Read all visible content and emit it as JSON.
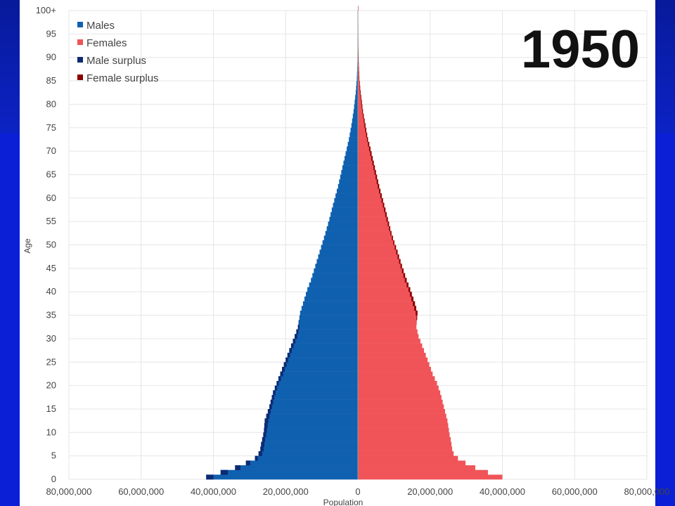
{
  "slide": {
    "background": "#0a1fd6",
    "panel_background": "#ffffff"
  },
  "chart_data": {
    "type": "bar",
    "orientation": "horizontal-population-pyramid",
    "year_label": "1950",
    "xlabel": "Population",
    "ylabel": "Age",
    "xlim": [
      -80000000,
      80000000
    ],
    "x_ticks": [
      -80000000,
      -60000000,
      -40000000,
      -20000000,
      0,
      20000000,
      40000000,
      60000000,
      80000000
    ],
    "x_tick_labels": [
      "80,000,000",
      "60,000,000",
      "40,000,000",
      "20,000,000",
      "0",
      "20,000,000",
      "40,000,000",
      "60,000,000",
      "80,000,000"
    ],
    "y_ticks": [
      0,
      5,
      10,
      15,
      20,
      25,
      30,
      35,
      40,
      45,
      50,
      55,
      60,
      65,
      70,
      75,
      80,
      85,
      90,
      95,
      100
    ],
    "y_tick_labels": [
      "0",
      "5",
      "10",
      "15",
      "20",
      "25",
      "30",
      "35",
      "40",
      "45",
      "50",
      "55",
      "60",
      "65",
      "70",
      "75",
      "80",
      "85",
      "90",
      "95",
      "100+"
    ],
    "grid": true,
    "legend_position": "top-left",
    "legend": [
      {
        "label": "Males",
        "color": "#1060b0"
      },
      {
        "label": "Females",
        "color": "#f05458"
      },
      {
        "label": "Male surplus",
        "color": "#0d2a72"
      },
      {
        "label": "Female surplus",
        "color": "#8b0000"
      }
    ],
    "series": [
      {
        "name": "Males",
        "color": "#1060b0",
        "ages": [
          0,
          1,
          2,
          3,
          4,
          5,
          6,
          7,
          8,
          9,
          10,
          12,
          15,
          18,
          20,
          22,
          25,
          28,
          30,
          32,
          35,
          37,
          40,
          42,
          45,
          48,
          50,
          52,
          55,
          58,
          60,
          62,
          65,
          68,
          70,
          72,
          75,
          78,
          80,
          82,
          85,
          88,
          90,
          92,
          95,
          98,
          100
        ],
        "values": [
          42000000,
          38000000,
          34000000,
          31000000,
          28500000,
          27500000,
          27000000,
          26800000,
          26500000,
          26200000,
          26000000,
          25800000,
          24500000,
          23500000,
          22500000,
          21500000,
          20000000,
          18500000,
          17500000,
          16600000,
          16000000,
          15200000,
          14000000,
          13000000,
          11800000,
          10600000,
          9800000,
          9000000,
          7900000,
          6900000,
          6200000,
          5500000,
          4600000,
          3700000,
          3100000,
          2500000,
          1800000,
          1200000,
          900000,
          600000,
          300000,
          150000,
          80000,
          40000,
          15000,
          5000,
          2000
        ]
      },
      {
        "name": "Females",
        "color": "#f05458",
        "ages": [
          0,
          1,
          2,
          3,
          4,
          5,
          6,
          7,
          8,
          9,
          10,
          12,
          15,
          18,
          20,
          22,
          25,
          28,
          30,
          32,
          35,
          37,
          40,
          42,
          45,
          48,
          50,
          52,
          55,
          58,
          60,
          62,
          65,
          68,
          70,
          72,
          75,
          78,
          80,
          82,
          85,
          88,
          90,
          92,
          95,
          98,
          100
        ],
        "values": [
          40000000,
          36000000,
          32500000,
          29800000,
          27700000,
          26500000,
          26100000,
          25900000,
          25700000,
          25400000,
          25200000,
          24800000,
          23800000,
          22800000,
          21900000,
          20700000,
          19300000,
          17800000,
          16800000,
          16200000,
          16500000,
          15800000,
          14500000,
          13500000,
          12200000,
          11000000,
          10100000,
          9300000,
          8300000,
          7300000,
          6600000,
          5900000,
          5000000,
          4100000,
          3500000,
          2800000,
          2100000,
          1400000,
          1100000,
          750000,
          400000,
          200000,
          110000,
          60000,
          25000,
          8000,
          3000
        ]
      }
    ]
  }
}
